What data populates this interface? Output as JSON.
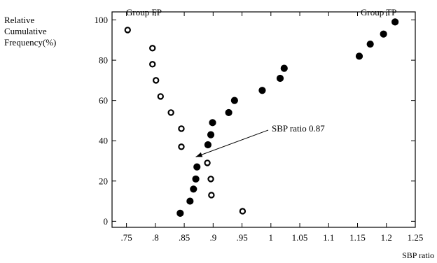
{
  "chart_data": {
    "type": "scatter",
    "xlabel": "SBP ratio",
    "ylabel": "Relative\nCumulative\nFrequency(%)",
    "xlim": [
      0.725,
      1.25
    ],
    "ylim": [
      -3,
      104
    ],
    "xticks": [
      0.75,
      0.8,
      0.85,
      0.9,
      0.95,
      1.0,
      1.05,
      1.1,
      1.15,
      1.2,
      1.25
    ],
    "xtick_labels": [
      ".75",
      ".8",
      ".85",
      ".9",
      ".95",
      "1",
      "1.05",
      "1.1",
      "1.15",
      "1.2",
      "1.25"
    ],
    "yticks": [
      0,
      20,
      40,
      60,
      80,
      100
    ],
    "ytick_labels": [
      "0",
      "20",
      "40",
      "60",
      "80",
      "100"
    ],
    "series": [
      {
        "name": "Group FP",
        "marker": "open-circle",
        "color": "#000000",
        "points": [
          {
            "x": 0.752,
            "y": 95
          },
          {
            "x": 0.795,
            "y": 86
          },
          {
            "x": 0.795,
            "y": 78
          },
          {
            "x": 0.801,
            "y": 70
          },
          {
            "x": 0.809,
            "y": 62
          },
          {
            "x": 0.827,
            "y": 54
          },
          {
            "x": 0.845,
            "y": 46
          },
          {
            "x": 0.845,
            "y": 37
          },
          {
            "x": 0.89,
            "y": 29
          },
          {
            "x": 0.896,
            "y": 21
          },
          {
            "x": 0.897,
            "y": 13
          },
          {
            "x": 0.951,
            "y": 5
          }
        ]
      },
      {
        "name": "Group TP",
        "marker": "filled-circle",
        "color": "#000000",
        "points": [
          {
            "x": 0.843,
            "y": 4
          },
          {
            "x": 0.86,
            "y": 10
          },
          {
            "x": 0.866,
            "y": 16
          },
          {
            "x": 0.87,
            "y": 21
          },
          {
            "x": 0.872,
            "y": 27
          },
          {
            "x": 0.891,
            "y": 38
          },
          {
            "x": 0.896,
            "y": 43
          },
          {
            "x": 0.899,
            "y": 49
          },
          {
            "x": 0.927,
            "y": 54
          },
          {
            "x": 0.937,
            "y": 60
          },
          {
            "x": 0.985,
            "y": 65
          },
          {
            "x": 1.016,
            "y": 71
          },
          {
            "x": 1.023,
            "y": 76
          },
          {
            "x": 1.153,
            "y": 82
          },
          {
            "x": 1.172,
            "y": 88
          },
          {
            "x": 1.195,
            "y": 93
          },
          {
            "x": 1.215,
            "y": 99
          }
        ]
      }
    ],
    "annotation": {
      "text": "SBP ratio 0.87",
      "arrow_to": {
        "x": 0.87,
        "y": 32
      }
    }
  }
}
